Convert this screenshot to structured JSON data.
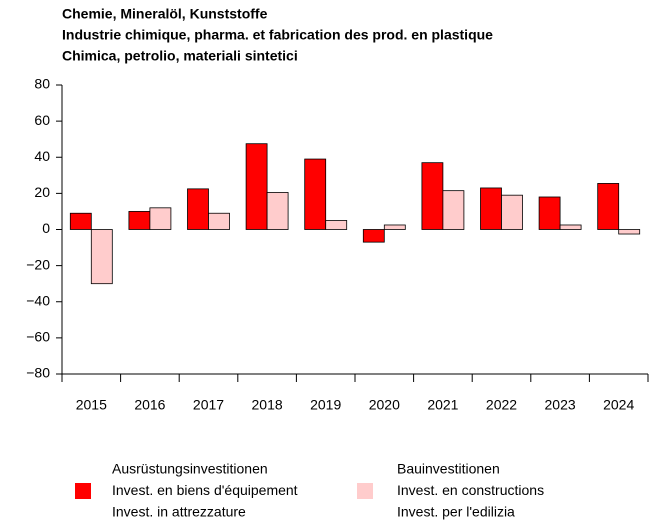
{
  "chart_data": {
    "type": "bar",
    "title": [
      "Chemie, Mineralöl, Kunststoffe",
      "Industrie chimique, pharma. et fabrication des prod. en plastique",
      "Chimica, petrolio, materiali sintetici"
    ],
    "categories": [
      "2015",
      "2016",
      "2017",
      "2018",
      "2019",
      "2020",
      "2021",
      "2022",
      "2023",
      "2024"
    ],
    "series": [
      {
        "name": [
          "Ausrüstungsinvestitionen",
          "Invest. en biens d'équipement",
          "Invest. in attrezzature"
        ],
        "color": "#ff0000",
        "values": [
          9,
          10,
          22.5,
          47.5,
          39,
          -7,
          37,
          23,
          18,
          25.5
        ]
      },
      {
        "name": [
          "Bauinvestitionen",
          "Invest. en constructions",
          "Invest. per l'edilizia"
        ],
        "color": "#ffcccc",
        "values": [
          -30,
          12,
          9,
          20.5,
          5,
          2.5,
          21.5,
          19,
          2.5,
          -2.5
        ]
      }
    ],
    "ylim": [
      -80,
      80
    ],
    "yticks": [
      {
        "value": -80,
        "label": "−80"
      },
      {
        "value": -60,
        "label": "−60"
      },
      {
        "value": -40,
        "label": "−40"
      },
      {
        "value": -20,
        "label": "−20"
      },
      0,
      20,
      40,
      60,
      80
    ],
    "grid": false
  }
}
